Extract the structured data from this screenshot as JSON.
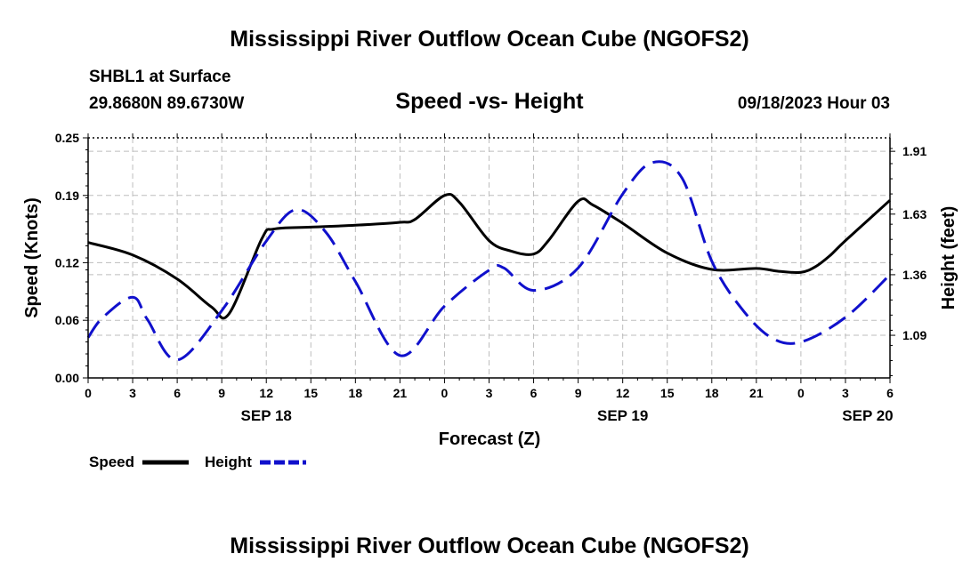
{
  "page": {
    "title": "Mississippi River Outflow Ocean Cube (NGOFS2)",
    "footer_title": "Mississippi River Outflow Ocean Cube (NGOFS2)",
    "station": "SHBL1 at Surface",
    "coords": "29.8680N  89.6730W",
    "datetime": "09/18/2023 Hour 03"
  },
  "chart_data": {
    "type": "line",
    "title": "Speed -vs- Height",
    "xlabel": "Forecast (Z)",
    "ylabel": "Speed (Knots)",
    "y2label": "Height (feet)",
    "xlim": [
      0,
      54
    ],
    "ylim": [
      0,
      0.25
    ],
    "y2lim": [
      0.9,
      1.97
    ],
    "x_ticks": [
      0,
      3,
      6,
      9,
      12,
      15,
      18,
      21,
      24,
      27,
      30,
      33,
      36,
      39,
      42,
      45,
      48,
      51,
      54
    ],
    "x_tick_labels": [
      "0",
      "3",
      "6",
      "9",
      "12",
      "15",
      "18",
      "21",
      "0",
      "3",
      "6",
      "9",
      "12",
      "15",
      "18",
      "21",
      "0",
      "3",
      "6"
    ],
    "y_ticks": [
      0,
      0.06,
      0.12,
      0.19,
      0.25
    ],
    "y_tick_labels": [
      "0.00",
      "0.06",
      "0.12",
      "0.19",
      "0.25"
    ],
    "y2_ticks": [
      1.09,
      1.36,
      1.63,
      1.91
    ],
    "y2_tick_labels": [
      "1.09",
      "1.36",
      "1.63",
      "1.91"
    ],
    "date_labels": [
      {
        "x": 12,
        "text": "SEP 18"
      },
      {
        "x": 36,
        "text": "SEP 19"
      },
      {
        "x": 52.5,
        "text": "SEP 20"
      }
    ],
    "series": [
      {
        "name": "Speed",
        "axis": "left",
        "color": "#000000",
        "dash": "solid",
        "x": [
          0,
          3,
          6,
          8.3,
          9.5,
          11.7,
          12.5,
          15,
          18,
          21,
          22,
          24,
          25,
          27,
          28.5,
          30,
          31,
          33,
          34,
          36,
          39,
          42,
          45,
          46.5,
          48,
          49,
          50,
          51,
          54
        ],
        "values": [
          0.141,
          0.128,
          0.103,
          0.074,
          0.067,
          0.145,
          0.155,
          0.157,
          0.159,
          0.162,
          0.165,
          0.19,
          0.183,
          0.143,
          0.132,
          0.129,
          0.143,
          0.184,
          0.18,
          0.161,
          0.13,
          0.113,
          0.114,
          0.111,
          0.11,
          0.116,
          0.128,
          0.143,
          0.185
        ]
      },
      {
        "name": "Height",
        "axis": "right",
        "color": "#1010cc",
        "dash": "dashed",
        "x": [
          0,
          1,
          3,
          4,
          6,
          9,
          12,
          14,
          16,
          18,
          21,
          24,
          27,
          28,
          30,
          33,
          36,
          38,
          40,
          42,
          44,
          46,
          48,
          51,
          54
        ],
        "values": [
          1.08,
          1.17,
          1.26,
          1.16,
          0.98,
          1.2,
          1.51,
          1.65,
          1.55,
          1.33,
          1.0,
          1.22,
          1.38,
          1.39,
          1.29,
          1.39,
          1.72,
          1.86,
          1.79,
          1.42,
          1.21,
          1.08,
          1.06,
          1.17,
          1.36
        ]
      }
    ],
    "legend": [
      {
        "label": "Speed",
        "color": "#000000",
        "dash": "solid"
      },
      {
        "label": "Height",
        "color": "#1010cc",
        "dash": "dashed"
      }
    ]
  }
}
